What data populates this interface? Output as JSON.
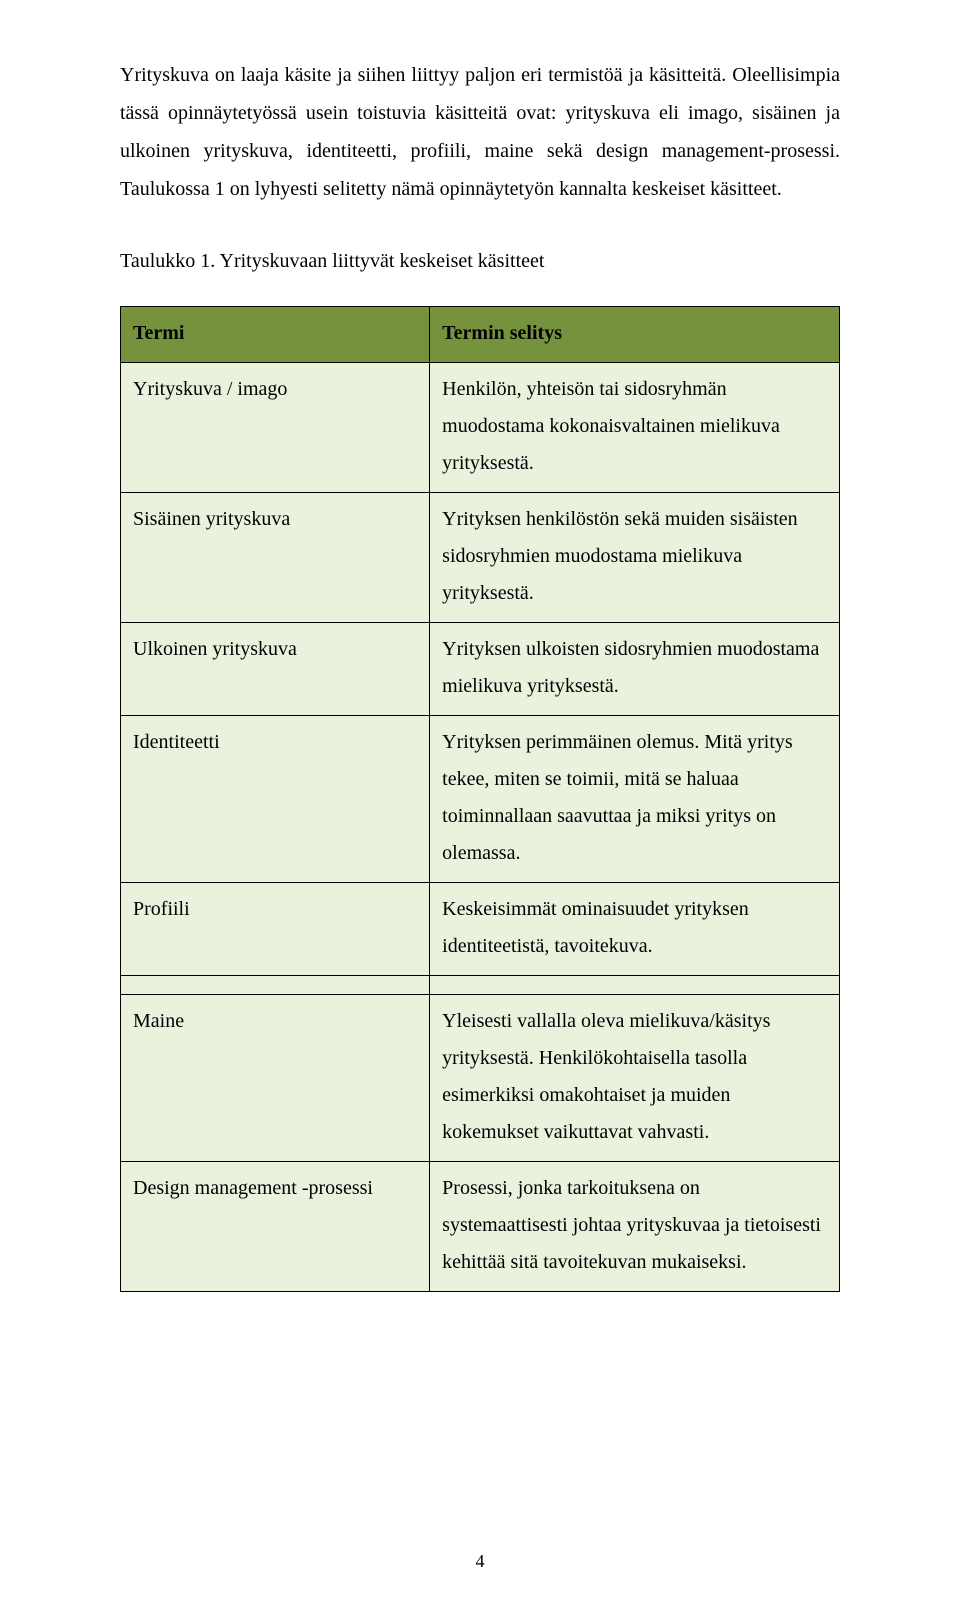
{
  "colors": {
    "page_bg": "#ffffff",
    "table_header_bg": "#76923c",
    "table_body_bg": "#eaf1dd",
    "table_border": "#000000",
    "text": "#000000"
  },
  "typography": {
    "body_fontsize_pt": 15,
    "body_lineheight": 1.9,
    "font_family": "Garamond"
  },
  "intro_paragraph": "Yrityskuva on laaja käsite ja siihen liittyy paljon eri termistöä ja käsitteitä. Oleellisimpia tässä opinnäytetyössä usein toistuvia käsitteitä ovat: yrityskuva eli imago, sisäinen ja ulkoinen yrityskuva, identiteetti, profiili, maine sekä design management-prosessi. Taulukossa 1 on lyhyesti selitetty nämä opinnäytetyön kannalta keskeiset käsitteet.",
  "table_caption": "Taulukko 1. Yrityskuvaan liittyvät keskeiset käsitteet",
  "table": {
    "header": {
      "term": "Termi",
      "desc": "Termin selitys"
    },
    "group1": [
      {
        "term": "Yrityskuva / imago",
        "desc": "Henkilön, yhteisön tai sidosryhmän muodostama kokonaisvaltainen mielikuva yrityksestä."
      },
      {
        "term": "Sisäinen yrityskuva",
        "desc": "Yrityksen henkilöstön sekä muiden sisäisten sidosryhmien muodostama mielikuva yrityksestä."
      },
      {
        "term": "Ulkoinen yrityskuva",
        "desc": "Yrityksen ulkoisten sidosryhmien muodostama mielikuva yrityksestä."
      },
      {
        "term": "Identiteetti",
        "desc": "Yrityksen perimmäinen olemus. Mitä yritys tekee, miten se toimii, mitä se haluaa toiminnallaan saavuttaa ja miksi yritys on olemassa."
      },
      {
        "term": "Profiili",
        "desc": "Keskeisimmät ominaisuudet yrityksen identiteetistä, tavoitekuva."
      }
    ],
    "group2": [
      {
        "term": "Maine",
        "desc": "Yleisesti vallalla oleva mielikuva/käsitys yrityksestä. Henkilökohtaisella tasolla esimerkiksi omakohtaiset ja muiden kokemukset vaikuttavat vahvasti."
      },
      {
        "term": "Design management -prosessi",
        "desc": "Prosessi, jonka tarkoituksena on systemaattisesti johtaa yrityskuvaa ja tietoisesti kehittää sitä tavoitekuvan mukaiseksi."
      }
    ]
  },
  "page_number": "4"
}
